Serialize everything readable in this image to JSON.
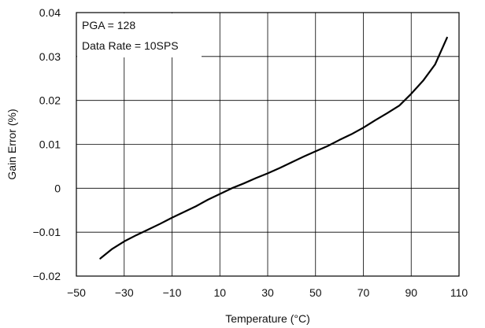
{
  "chart_data": {
    "type": "line",
    "title": "",
    "xlabel": "Temperature (°C)",
    "ylabel": "Gain Error (%)",
    "xlim": [
      -50,
      110
    ],
    "ylim": [
      -0.02,
      0.04
    ],
    "x_ticks": [
      -50,
      -30,
      -10,
      10,
      30,
      50,
      70,
      90,
      110
    ],
    "y_ticks": [
      -0.02,
      -0.01,
      0,
      0.01,
      0.02,
      0.03,
      0.04
    ],
    "x_tick_labels": [
      "−50",
      "−30",
      "−10",
      "10",
      "30",
      "50",
      "70",
      "90",
      "110"
    ],
    "y_tick_labels": [
      "−0.02",
      "−0.01",
      "0",
      "0.01",
      "0.02",
      "0.03",
      "0.04"
    ],
    "grid": true,
    "legend": "none",
    "annotations": [
      "PGA = 128",
      "Data Rate = 10SPS"
    ],
    "series": [
      {
        "color": "#000000",
        "x": [
          -40,
          -35,
          -30,
          -25,
          -20,
          -15,
          -10,
          -5,
          0,
          5,
          10,
          15,
          20,
          25,
          30,
          35,
          40,
          45,
          50,
          55,
          60,
          65,
          70,
          75,
          80,
          85,
          90,
          95,
          100,
          105
        ],
        "y": [
          -0.016,
          -0.0138,
          -0.0121,
          -0.0107,
          -0.0094,
          -0.0081,
          -0.0067,
          -0.0054,
          -0.0041,
          -0.0026,
          -0.0013,
          0.0,
          0.0011,
          0.0023,
          0.0034,
          0.0046,
          0.0059,
          0.0072,
          0.0084,
          0.0096,
          0.011,
          0.0123,
          0.0138,
          0.0155,
          0.0171,
          0.0188,
          0.0215,
          0.0245,
          0.0282,
          0.0343
        ]
      }
    ]
  }
}
